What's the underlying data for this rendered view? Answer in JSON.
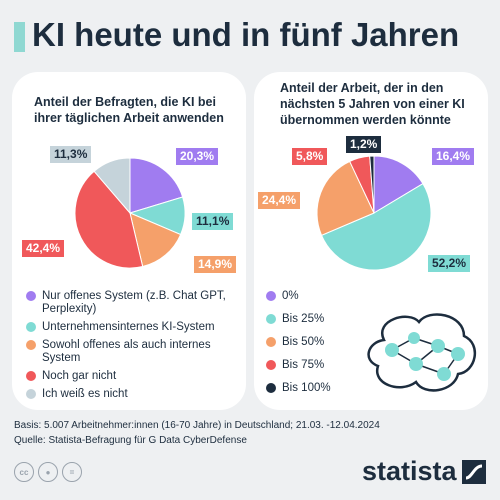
{
  "title": "KI heute und in fünf Jahren",
  "colors": {
    "purple": "#a07cf0",
    "teal": "#7fdbd4",
    "orange": "#f5a06a",
    "red": "#f0585a",
    "grey": "#c5d3da",
    "navy": "#1d2d3e",
    "accent": "#8fd8d2"
  },
  "chart_data": [
    {
      "type": "pie",
      "title": "Anteil der Befragten, die KI bei ihrer täglichen Arbeit anwenden",
      "slices": [
        {
          "label": "Nur offenes System (z.B. Chat GPT, Perplexity)",
          "value": 20.3,
          "value_label": "20,3%",
          "color": "#a07cf0"
        },
        {
          "label": "Unternehmensinternes KI-System",
          "value": 11.1,
          "value_label": "11,1%",
          "color": "#7fdbd4"
        },
        {
          "label": "Sowohl offenes als auch internes System",
          "value": 14.9,
          "value_label": "14,9%",
          "color": "#f5a06a"
        },
        {
          "label": "Noch gar nicht",
          "value": 42.4,
          "value_label": "42,4%",
          "color": "#f0585a"
        },
        {
          "label": "Ich weiß es nicht",
          "value": 11.3,
          "value_label": "11,3%",
          "color": "#c5d3da"
        }
      ]
    },
    {
      "type": "pie",
      "title": "Anteil der Arbeit, der in den nächsten 5 Jahren von einer KI übernommen werden könnte",
      "slices": [
        {
          "label": "0%",
          "value": 16.4,
          "value_label": "16,4%",
          "color": "#a07cf0"
        },
        {
          "label": "Bis 25%",
          "value": 52.2,
          "value_label": "52,2%",
          "color": "#7fdbd4"
        },
        {
          "label": "Bis 50%",
          "value": 24.4,
          "value_label": "24,4%",
          "color": "#f5a06a"
        },
        {
          "label": "Bis 75%",
          "value": 5.8,
          "value_label": "5,8%",
          "color": "#f0585a"
        },
        {
          "label": "Bis 100%",
          "value": 1.2,
          "value_label": "1,2%",
          "color": "#1d2d3e"
        }
      ]
    }
  ],
  "footer": {
    "basis": "Basis: 5.007 Arbeitnehmer:innen (16-70 Jahre) in Deutschland; 21.03. -12.04.2024",
    "source": "Quelle: Statista-Befragung für G Data CyberDefense"
  },
  "logo": "statista",
  "icons": [
    "cc-icon",
    "person-icon",
    "equals-icon",
    "statista-logo-icon",
    "brain-network-icon"
  ]
}
